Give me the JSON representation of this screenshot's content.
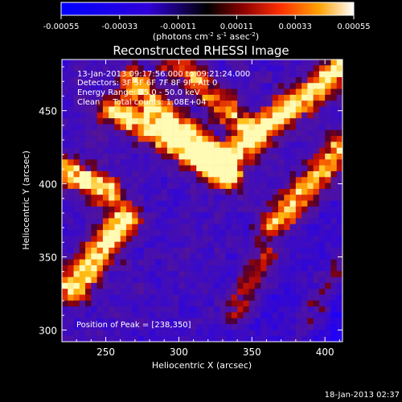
{
  "chart_data": {
    "type": "heatmap",
    "title": "Reconstructed RHESSI Image",
    "xlabel": "Heliocentric X (arcsec)",
    "ylabel": "Heliocentric Y (arcsec)",
    "xlim": [
      220,
      412
    ],
    "ylim": [
      292,
      485
    ],
    "x_ticks": [
      250,
      300,
      350,
      400
    ],
    "y_ticks": [
      300,
      350,
      400,
      450
    ],
    "grid": false,
    "colorbar": {
      "min": -0.00055,
      "max": 0.00055,
      "ticks": [
        "-0.00055",
        "-0.00033",
        "-0.00011",
        "0.00011",
        "0.00033",
        "0.00055"
      ],
      "label_prefix": "(photons cm",
      "label_exp1": "-2",
      "label_mid": " s",
      "label_exp2": "-1",
      "label_mid2": " asec",
      "label_exp3": "-2",
      "label_suffix": ")"
    },
    "annotations": [
      "13-Jan-2013 09:17:56.000 to 09:21:24.000",
      "Detectors: 3F 5F 6F 7F 8F 9F, Att 0",
      "Energy Range: 25.0 - 50.0 keV",
      "Clean     Total counts: 1.08E+04"
    ],
    "peak_label": "Position of Peak = [238,350]",
    "peak_position": [
      238,
      350
    ],
    "bright_ridges": [
      {
        "from": [
          222,
          410
        ],
        "to": [
          250,
          395
        ],
        "intensity": 0.9
      },
      {
        "from": [
          228,
          330
        ],
        "to": [
          262,
          375
        ],
        "intensity": 1.0
      },
      {
        "from": [
          255,
          450
        ],
        "to": [
          312,
          420
        ],
        "intensity": 0.85
      },
      {
        "from": [
          268,
          470
        ],
        "to": [
          335,
          405
        ],
        "intensity": 0.8
      },
      {
        "from": [
          295,
          485
        ],
        "to": [
          345,
          440
        ],
        "intensity": 0.6
      },
      {
        "from": [
          325,
          410
        ],
        "to": [
          412,
          480
        ],
        "intensity": 0.95
      },
      {
        "from": [
          365,
          372
        ],
        "to": [
          412,
          425
        ],
        "intensity": 0.75
      },
      {
        "from": [
          338,
          310
        ],
        "to": [
          360,
          350
        ],
        "intensity": 0.45
      },
      {
        "from": [
          382,
          300
        ],
        "to": [
          412,
          345
        ],
        "intensity": 0.4
      }
    ],
    "footer_date": "18-Jan-2013 02:37"
  }
}
